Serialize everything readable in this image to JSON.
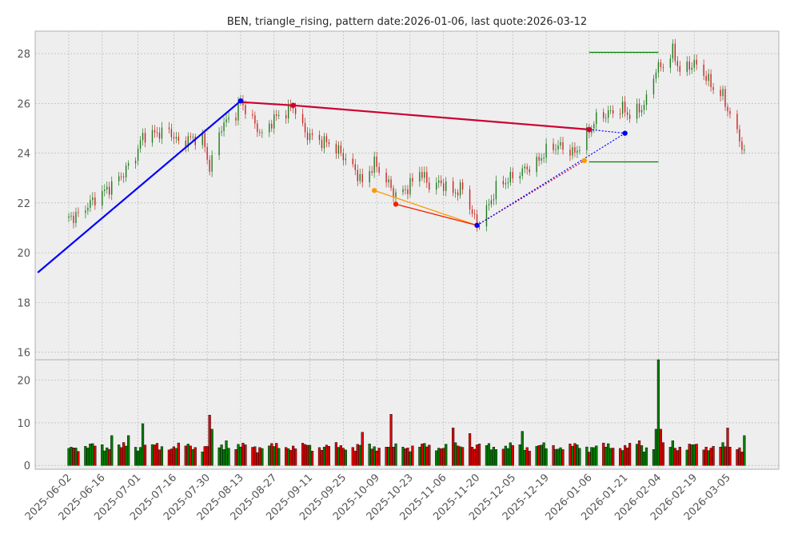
{
  "chart_data": [
    {
      "type": "candlestick",
      "title": "BEN, triangle_rising, pattern date:2026-01-06, last quote:2026-03-12",
      "ylim": [
        15.7,
        28.9
      ],
      "yticks": [
        16,
        18,
        20,
        22,
        24,
        26,
        28
      ],
      "grid": true,
      "date_range": [
        "2025-06-02",
        "2026-03-12"
      ],
      "price_path": [
        [
          "2025-06-02",
          21.4
        ],
        [
          "2025-06-06",
          21.5
        ],
        [
          "2025-06-11",
          22.0
        ],
        [
          "2025-06-16",
          22.4
        ],
        [
          "2025-06-20",
          22.7
        ],
        [
          "2025-06-25",
          23.2
        ],
        [
          "2025-06-30",
          23.9
        ],
        [
          "2025-07-03",
          24.7
        ],
        [
          "2025-07-09",
          24.8
        ],
        [
          "2025-07-14",
          24.9
        ],
        [
          "2025-07-18",
          24.4
        ],
        [
          "2025-07-23",
          24.6
        ],
        [
          "2025-07-28",
          24.6
        ],
        [
          "2025-07-31",
          23.4
        ],
        [
          "2025-08-05",
          25.1
        ],
        [
          "2025-08-11",
          25.6
        ],
        [
          "2025-08-13",
          26.1
        ],
        [
          "2025-08-18",
          25.3
        ],
        [
          "2025-08-22",
          24.7
        ],
        [
          "2025-08-27",
          25.4
        ],
        [
          "2025-09-02",
          25.7
        ],
        [
          "2025-09-04",
          25.9
        ],
        [
          "2025-09-09",
          24.8
        ],
        [
          "2025-09-15",
          24.5
        ],
        [
          "2025-09-19",
          24.4
        ],
        [
          "2025-09-24",
          24.0
        ],
        [
          "2025-09-30",
          23.3
        ],
        [
          "2025-10-03",
          22.8
        ],
        [
          "2025-10-08",
          23.6
        ],
        [
          "2025-10-13",
          22.9
        ],
        [
          "2025-10-17",
          22.3
        ],
        [
          "2025-10-22",
          22.6
        ],
        [
          "2025-10-27",
          23.3
        ],
        [
          "2025-10-31",
          22.7
        ],
        [
          "2025-11-05",
          22.8
        ],
        [
          "2025-11-10",
          22.4
        ],
        [
          "2025-11-14",
          22.6
        ],
        [
          "2025-11-18",
          21.6
        ],
        [
          "2025-11-20",
          21.1
        ],
        [
          "2025-11-25",
          21.9
        ],
        [
          "2025-11-28",
          22.6
        ],
        [
          "2025-12-04",
          23.0
        ],
        [
          "2025-12-09",
          23.3
        ],
        [
          "2025-12-15",
          23.6
        ],
        [
          "2025-12-19",
          24.1
        ],
        [
          "2025-12-24",
          24.3
        ],
        [
          "2025-12-31",
          24.0
        ],
        [
          "2026-01-06",
          24.9
        ],
        [
          "2026-01-09",
          25.4
        ],
        [
          "2026-01-14",
          25.6
        ],
        [
          "2026-01-20",
          25.8
        ],
        [
          "2026-01-23",
          25.5
        ],
        [
          "2026-01-29",
          25.9
        ],
        [
          "2026-02-03",
          27.4
        ],
        [
          "2026-02-06",
          27.5
        ],
        [
          "2026-02-10",
          28.1
        ],
        [
          "2026-02-13",
          27.3
        ],
        [
          "2026-02-19",
          27.6
        ],
        [
          "2026-02-23",
          27.2
        ],
        [
          "2026-02-27",
          26.6
        ],
        [
          "2026-03-03",
          26.3
        ],
        [
          "2026-03-06",
          25.5
        ],
        [
          "2026-03-10",
          24.6
        ],
        [
          "2026-03-12",
          23.9
        ]
      ],
      "lines": [
        {
          "color": "#0000ff",
          "style": "solid",
          "points": [
            [
              "2025-05-20",
              19.2
            ],
            [
              "2025-08-13",
              26.1
            ]
          ]
        },
        {
          "color": "#cc0033",
          "style": "solid",
          "points": [
            [
              "2025-08-13",
              26.05
            ],
            [
              "2025-09-04",
              25.92
            ],
            [
              "2026-01-06",
              24.95
            ]
          ]
        },
        {
          "color": "#ff9900",
          "style": "solid",
          "points": [
            [
              "2025-10-08",
              22.5
            ],
            [
              "2025-11-20",
              21.1
            ]
          ]
        },
        {
          "color": "#ee2200",
          "style": "solid",
          "points": [
            [
              "2025-10-17",
              21.95
            ],
            [
              "2025-11-20",
              21.1
            ]
          ]
        },
        {
          "color": "#cc0033",
          "style": "dotted",
          "points": [
            [
              "2025-11-20",
              21.1
            ],
            [
              "2026-01-04",
              23.7
            ]
          ]
        },
        {
          "color": "#0000ff",
          "style": "dotted",
          "points": [
            [
              "2026-01-06",
              24.95
            ],
            [
              "2026-01-21",
              24.8
            ]
          ]
        },
        {
          "color": "#0000ff",
          "style": "dotted",
          "points": [
            [
              "2025-11-20",
              21.1
            ],
            [
              "2026-01-21",
              24.8
            ]
          ]
        },
        {
          "color": "#008000",
          "style": "solid",
          "points": [
            [
              "2026-01-06",
              28.05
            ],
            [
              "2026-02-04",
              28.05
            ]
          ]
        },
        {
          "color": "#008000",
          "style": "solid",
          "points": [
            [
              "2026-01-06",
              23.65
            ],
            [
              "2026-02-04",
              23.65
            ]
          ]
        }
      ],
      "markers": [
        {
          "date": "2025-08-13",
          "value": 26.1,
          "color": "#0000ff"
        },
        {
          "date": "2025-09-04",
          "value": 25.92,
          "color": "#cc0033"
        },
        {
          "date": "2025-10-08",
          "value": 22.5,
          "color": "#ff9900"
        },
        {
          "date": "2025-10-17",
          "value": 21.95,
          "color": "#ee2200"
        },
        {
          "date": "2025-11-20",
          "value": 21.1,
          "color": "#0000ff"
        },
        {
          "date": "2026-01-04",
          "value": 23.7,
          "color": "#ff9900"
        },
        {
          "date": "2026-01-06",
          "value": 24.95,
          "color": "#cc0033"
        },
        {
          "date": "2026-01-21",
          "value": 24.8,
          "color": "#0000ff"
        }
      ]
    },
    {
      "type": "bar",
      "ylabel": "",
      "ylim": [
        -0.9,
        24.8
      ],
      "yticks": [
        0,
        10,
        20
      ],
      "xticks": [
        "2025-06-02",
        "2025-06-16",
        "2025-07-01",
        "2025-07-16",
        "2025-07-30",
        "2025-08-13",
        "2025-08-27",
        "2025-09-11",
        "2025-09-25",
        "2025-10-09",
        "2025-10-23",
        "2025-11-06",
        "2025-11-20",
        "2025-12-05",
        "2025-12-19",
        "2026-01-06",
        "2026-01-21",
        "2026-02-04",
        "2026-02-19",
        "2026-03-05"
      ],
      "volume_spikes": [
        [
          "2025-06-02",
          4.0
        ],
        [
          "2025-06-20",
          7.0
        ],
        [
          "2025-06-27",
          7.0
        ],
        [
          "2025-07-03",
          9.8
        ],
        [
          "2025-07-31",
          11.8
        ],
        [
          "2025-08-01",
          8.5
        ],
        [
          "2025-08-07",
          5.8
        ],
        [
          "2025-10-03",
          7.8
        ],
        [
          "2025-10-15",
          12.0
        ],
        [
          "2025-11-10",
          8.8
        ],
        [
          "2025-11-17",
          7.5
        ],
        [
          "2025-12-09",
          8.0
        ],
        [
          "2026-01-27",
          5.8
        ],
        [
          "2026-02-03",
          8.5
        ],
        [
          "2026-02-04",
          24.8
        ],
        [
          "2026-02-05",
          8.5
        ],
        [
          "2026-02-10",
          5.8
        ],
        [
          "2026-03-05",
          8.8
        ],
        [
          "2026-03-12",
          7.0
        ]
      ],
      "volume_base": 3.6
    }
  ]
}
